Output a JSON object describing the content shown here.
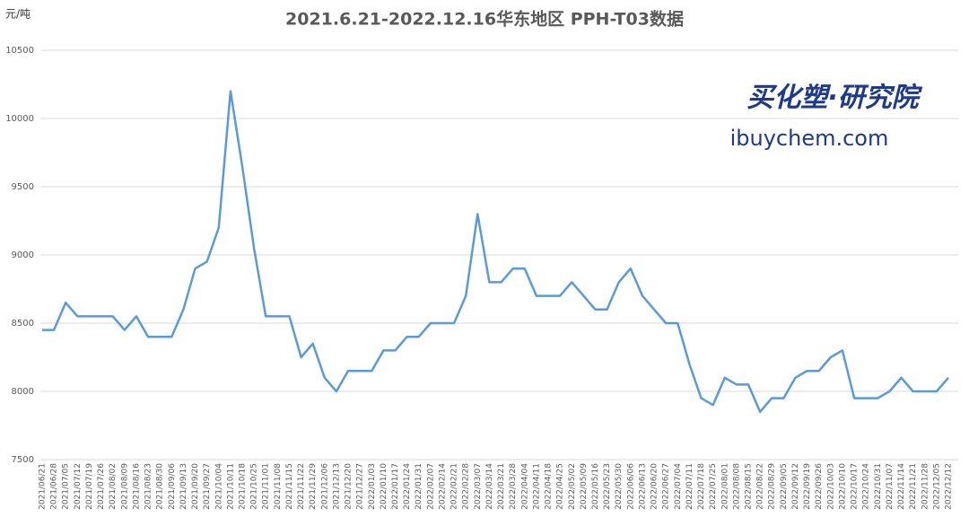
{
  "chart_data": {
    "type": "line",
    "title": "2021.6.21-2022.12.16华东地区  PPH-T03数据",
    "y_label": "元/吨",
    "watermark": [
      "买化塑·研究院",
      "ibuychem.com"
    ],
    "categories": [
      "2021/06/21",
      "2021/06/28",
      "2021/07/05",
      "2021/07/12",
      "2021/07/19",
      "2021/07/26",
      "2021/08/02",
      "2021/08/09",
      "2021/08/16",
      "2021/08/23",
      "2021/08/30",
      "2021/09/06",
      "2021/09/13",
      "2021/09/20",
      "2021/09/27",
      "2021/10/04",
      "2021/10/11",
      "2021/10/18",
      "2021/10/25",
      "2021/11/01",
      "2021/11/08",
      "2021/11/15",
      "2021/11/22",
      "2021/11/29",
      "2021/12/06",
      "2021/12/13",
      "2021/12/20",
      "2021/12/27",
      "2022/01/03",
      "2022/01/10",
      "2022/01/17",
      "2022/01/24",
      "2022/01/31",
      "2022/02/07",
      "2022/02/14",
      "2022/02/21",
      "2022/02/28",
      "2022/03/07",
      "2022/03/14",
      "2022/03/21",
      "2022/03/28",
      "2022/04/04",
      "2022/04/11",
      "2022/04/18",
      "2022/04/25",
      "2022/05/02",
      "2022/05/09",
      "2022/05/16",
      "2022/05/23",
      "2022/05/30",
      "2022/06/06",
      "2022/06/13",
      "2022/06/20",
      "2022/06/27",
      "2022/07/04",
      "2022/07/11",
      "2022/07/18",
      "2022/07/25",
      "2022/08/01",
      "2022/08/08",
      "2022/08/15",
      "2022/08/22",
      "2022/08/29",
      "2022/09/05",
      "2022/09/12",
      "2022/09/19",
      "2022/09/26",
      "2022/10/03",
      "2022/10/10",
      "2022/10/17",
      "2022/10/24",
      "2022/10/31",
      "2022/11/07",
      "2022/11/14",
      "2022/11/21",
      "2022/11/28",
      "2022/12/05",
      "2022/12/12"
    ],
    "values": [
      8450,
      8450,
      8650,
      8550,
      8550,
      8550,
      8550,
      8450,
      8550,
      8400,
      8400,
      8400,
      8600,
      8900,
      8950,
      9200,
      10200,
      9650,
      9050,
      8550,
      8550,
      8550,
      8250,
      8350,
      8100,
      8000,
      8150,
      8150,
      8150,
      8300,
      8300,
      8400,
      8400,
      8500,
      8500,
      8500,
      8700,
      9300,
      8800,
      8800,
      8900,
      8900,
      8700,
      8700,
      8700,
      8800,
      8700,
      8600,
      8600,
      8800,
      8900,
      8700,
      8600,
      8500,
      8500,
      8200,
      7950,
      7900,
      8100,
      8050,
      8050,
      7850,
      7950,
      7950,
      8100,
      8150,
      8150,
      8250,
      8300,
      7950,
      7950,
      7950,
      8000,
      8100,
      8000,
      8000,
      8000,
      8100
    ],
    "color": "#5b9bd5",
    "ylim": [
      7500,
      10500
    ],
    "yticks": [
      7500,
      8000,
      8500,
      9000,
      9500,
      10000,
      10500
    ],
    "grid": true
  }
}
